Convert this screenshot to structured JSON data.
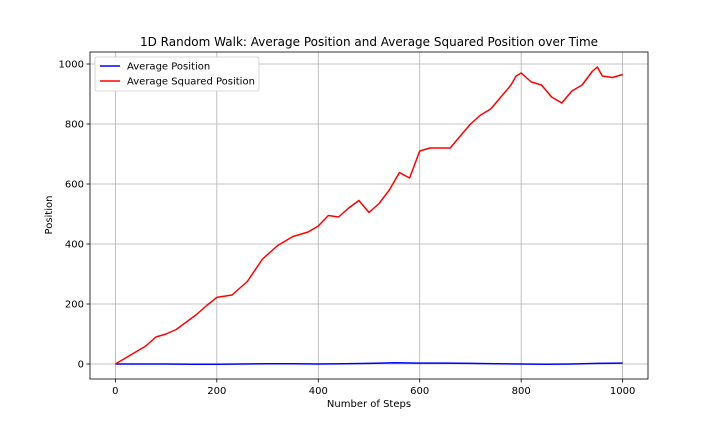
{
  "chart_data": {
    "type": "line",
    "title": "1D Random Walk: Average Position and Average Squared Position over Time",
    "xlabel": "Number of Steps",
    "ylabel": "Position",
    "xlim": [
      -50,
      1050
    ],
    "ylim": [
      -50,
      1040
    ],
    "xticks": [
      0,
      200,
      400,
      600,
      800,
      1000
    ],
    "yticks": [
      0,
      200,
      400,
      600,
      800,
      1000
    ],
    "grid": true,
    "legend": "top-left",
    "series": [
      {
        "name": "Average Position",
        "color": "#0000ff",
        "x": [
          0,
          50,
          100,
          150,
          200,
          250,
          300,
          350,
          400,
          450,
          500,
          550,
          600,
          650,
          700,
          750,
          800,
          850,
          900,
          950,
          1000
        ],
        "y": [
          0,
          0,
          0,
          -1,
          -1,
          0,
          1,
          1,
          0,
          1,
          2,
          4,
          3,
          3,
          2,
          1,
          0,
          -1,
          0,
          2,
          3
        ]
      },
      {
        "name": "Average Squared Position",
        "color": "#ff0000",
        "x": [
          0,
          20,
          40,
          60,
          80,
          100,
          120,
          140,
          160,
          180,
          200,
          230,
          260,
          290,
          320,
          350,
          380,
          400,
          420,
          440,
          460,
          480,
          500,
          520,
          540,
          560,
          580,
          600,
          620,
          640,
          660,
          680,
          700,
          720,
          740,
          760,
          780,
          790,
          800,
          820,
          840,
          860,
          880,
          900,
          920,
          940,
          950,
          960,
          980,
          1000
        ],
        "y": [
          0,
          20,
          40,
          60,
          90,
          100,
          115,
          140,
          165,
          195,
          222,
          230,
          275,
          350,
          395,
          425,
          440,
          460,
          495,
          490,
          520,
          545,
          505,
          535,
          580,
          638,
          620,
          710,
          720,
          720,
          720,
          760,
          800,
          830,
          850,
          890,
          930,
          960,
          970,
          940,
          930,
          890,
          870,
          910,
          930,
          975,
          990,
          960,
          955,
          965
        ]
      }
    ]
  }
}
